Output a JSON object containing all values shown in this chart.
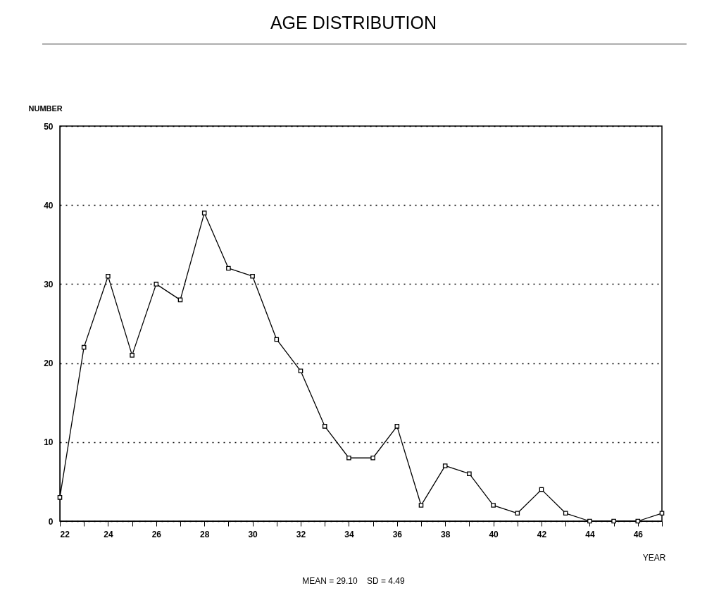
{
  "chart_data": {
    "type": "line",
    "title": "AGE DISTRIBUTION",
    "xlabel": "YEAR",
    "ylabel": "NUMBER",
    "x": [
      22,
      23,
      24,
      25,
      26,
      27,
      28,
      29,
      30,
      31,
      32,
      33,
      34,
      35,
      36,
      37,
      38,
      39,
      40,
      41,
      42,
      43,
      44,
      45,
      46,
      47
    ],
    "series": [
      {
        "color": "#000000",
        "values": [
          3,
          22,
          31,
          21,
          30,
          28,
          39,
          32,
          31,
          23,
          19,
          12,
          8,
          8,
          12,
          2,
          7,
          6,
          2,
          1,
          4,
          1,
          0,
          0,
          0,
          1
        ]
      }
    ],
    "xlim": [
      22,
      47
    ],
    "xticks": [
      22,
      {
        "value": 23,
        "label": null
      },
      24,
      {
        "value": 25,
        "label": null
      },
      26,
      {
        "value": 27,
        "label": null
      },
      28,
      {
        "value": 29,
        "label": null
      },
      30,
      {
        "value": 31,
        "label": null
      },
      32,
      {
        "value": 33,
        "label": null
      },
      34,
      {
        "value": 35,
        "label": null
      },
      36,
      {
        "value": 37,
        "label": null
      },
      38,
      {
        "value": 39,
        "label": null
      },
      40,
      {
        "value": 41,
        "label": null
      },
      42,
      {
        "value": 43,
        "label": null
      },
      44,
      {
        "value": 45,
        "label": null
      },
      46,
      {
        "value": 47,
        "label": null
      }
    ],
    "ylim": [
      0,
      50
    ],
    "yticks": [
      0,
      10,
      20,
      30,
      40,
      50
    ],
    "grid": "y",
    "marker": "square",
    "line_style": "solid",
    "annotations": [
      "MEAN = 29.10    SD = 4.49"
    ]
  }
}
